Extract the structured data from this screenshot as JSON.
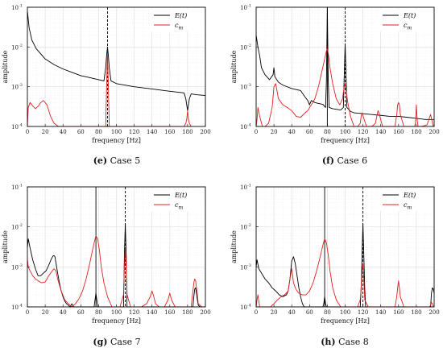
{
  "chart_data": [
    {
      "type": "line",
      "panel": "e",
      "caption_letter": "(e)",
      "caption_text": "Case 5",
      "xlabel": "frequency [Hz]",
      "ylabel": "amplitude",
      "xlim": [
        0,
        200
      ],
      "ylim": [
        0.0001,
        0.1
      ],
      "yscale": "log",
      "x_ticks": [
        0,
        20,
        40,
        60,
        80,
        100,
        120,
        140,
        160,
        180,
        200
      ],
      "y_ticks": [
        0.0001,
        0.001,
        0.01,
        0.1
      ],
      "y_tick_labels": [
        "10",
        "10",
        "10",
        "10"
      ],
      "y_tick_exponents": [
        "-4",
        "-3",
        "-2",
        "-1"
      ],
      "grid": true,
      "legend_position": "top-right",
      "vlines": [
        {
          "x": 90,
          "style": "dashed"
        }
      ],
      "series": [
        {
          "name": "E(t)",
          "color": "#000000",
          "x": [
            0,
            2,
            5,
            10,
            20,
            30,
            40,
            50,
            60,
            70,
            80,
            86,
            88,
            89,
            90,
            91,
            92,
            94,
            100,
            120,
            140,
            160,
            176,
            178,
            179,
            180,
            181,
            182,
            184,
            190,
            200
          ],
          "y": [
            0.08,
            0.03,
            0.015,
            0.009,
            0.005,
            0.0036,
            0.0028,
            0.0023,
            0.0019,
            0.0017,
            0.0015,
            0.0014,
            0.003,
            0.006,
            0.01,
            0.006,
            0.003,
            0.0014,
            0.0012,
            0.001,
            0.00088,
            0.00077,
            0.0007,
            0.0005,
            0.00035,
            0.00025,
            0.00035,
            0.0005,
            0.00066,
            0.00063,
            0.0006
          ]
        },
        {
          "name": "c_m",
          "color": "#e02020",
          "x": [
            0,
            1,
            3,
            6,
            9,
            12,
            15,
            18,
            22,
            26,
            30,
            35,
            40,
            88,
            89,
            90,
            91,
            92,
            176,
            178,
            179,
            180,
            181,
            182,
            184
          ],
          "y": [
            0.0001,
            0.0003,
            0.0004,
            0.00033,
            0.00028,
            0.00032,
            0.0004,
            0.00045,
            0.00035,
            0.00018,
            0.00012,
            0.0001,
            0.0001,
            0.0001,
            0.001,
            0.007,
            0.001,
            0.0001,
            0.0001,
            0.00012,
            0.00015,
            0.00025,
            0.00015,
            0.00012,
            0.0001
          ]
        }
      ]
    },
    {
      "type": "line",
      "panel": "f",
      "caption_letter": "(f)",
      "caption_text": "Case 6",
      "xlabel": "frequency [Hz]",
      "ylabel": "amplitude",
      "xlim": [
        0,
        200
      ],
      "ylim": [
        0.0001,
        0.1
      ],
      "yscale": "log",
      "x_ticks": [
        0,
        20,
        40,
        60,
        80,
        100,
        120,
        140,
        160,
        180,
        200
      ],
      "y_ticks": [
        0.0001,
        0.001,
        0.01,
        0.1
      ],
      "y_tick_labels": [
        "10",
        "10",
        "10",
        "10"
      ],
      "y_tick_exponents": [
        "-4",
        "-3",
        "-2",
        "-1"
      ],
      "grid": true,
      "legend_position": "top-right",
      "vlines": [
        {
          "x": 80,
          "style": "solid"
        },
        {
          "x": 100,
          "style": "dashed"
        }
      ],
      "series": [
        {
          "name": "E(t)",
          "color": "#000000",
          "x": [
            0,
            2,
            4,
            6,
            10,
            15,
            19,
            20,
            21,
            25,
            30,
            40,
            50,
            55,
            58,
            60,
            62,
            66,
            70,
            75,
            78,
            79,
            80,
            81,
            82,
            86,
            90,
            95,
            98,
            99,
            100,
            101,
            102,
            106,
            110,
            120,
            130,
            140,
            150,
            160,
            170,
            180,
            190,
            200
          ],
          "y": [
            0.02,
            0.01,
            0.006,
            0.003,
            0.002,
            0.0015,
            0.002,
            0.003,
            0.0018,
            0.0013,
            0.0011,
            0.0009,
            0.0008,
            0.00055,
            0.00045,
            0.00035,
            0.00045,
            0.0004,
            0.00038,
            0.00036,
            0.0003,
            0.0015,
            0.1,
            0.0015,
            0.0003,
            0.00028,
            0.00027,
            0.00026,
            0.0003,
            0.002,
            0.012,
            0.002,
            0.0003,
            0.00024,
            0.00022,
            0.00021,
            0.0002,
            0.00019,
            0.00018,
            0.00018,
            0.00017,
            0.00016,
            0.00015,
            0.00015
          ]
        },
        {
          "name": "c_m",
          "color": "#e02020",
          "x": [
            0,
            1,
            2,
            4,
            7,
            10,
            14,
            18,
            20,
            22,
            25,
            30,
            35,
            40,
            45,
            50,
            55,
            58,
            62,
            66,
            70,
            74,
            77,
            79,
            80,
            81,
            83,
            86,
            90,
            94,
            97,
            99,
            100,
            101,
            103,
            106,
            110,
            114,
            117,
            118,
            119,
            121,
            124,
            130,
            134,
            136,
            137,
            138,
            139,
            142,
            148,
            156,
            158,
            159,
            160,
            161,
            162,
            166,
            172,
            178,
            179,
            180,
            181,
            182,
            186,
            192,
            196,
            199,
            200
          ],
          "y": [
            0.0001,
            0.00015,
            0.0003,
            0.00018,
            0.0001,
            0.0001,
            0.00012,
            0.0003,
            0.001,
            0.0012,
            0.0005,
            0.00035,
            0.0003,
            0.00025,
            0.00018,
            0.00017,
            0.00022,
            0.00025,
            0.00035,
            0.0005,
            0.001,
            0.0025,
            0.005,
            0.008,
            0.009,
            0.007,
            0.003,
            0.0012,
            0.0005,
            0.00035,
            0.0005,
            0.001,
            0.0012,
            0.0008,
            0.0004,
            0.00018,
            0.0001,
            0.0001,
            0.00012,
            0.00018,
            0.00022,
            0.00016,
            0.0001,
            0.0001,
            0.00012,
            0.0002,
            0.00025,
            0.00022,
            0.00018,
            0.0001,
            0.0001,
            0.0001,
            0.0002,
            0.00035,
            0.0004,
            0.00035,
            0.0002,
            0.0001,
            0.0001,
            0.0001,
            0.00012,
            0.00035,
            0.00014,
            0.0001,
            0.0001,
            0.00011,
            0.0002,
            0.0001,
            0.0001
          ]
        }
      ]
    },
    {
      "type": "line",
      "panel": "g",
      "caption_letter": "(g)",
      "caption_text": "Case 7",
      "xlabel": "frequency [Hz]",
      "ylabel": "amplitude",
      "xlim": [
        0,
        200
      ],
      "ylim": [
        0.0001,
        0.1
      ],
      "yscale": "log",
      "x_ticks": [
        0,
        20,
        40,
        60,
        80,
        100,
        120,
        140,
        160,
        180,
        200
      ],
      "y_ticks": [
        0.0001,
        0.001,
        0.01,
        0.1
      ],
      "y_tick_labels": [
        "10",
        "10",
        "10",
        "10"
      ],
      "y_tick_exponents": [
        "-4",
        "-3",
        "-2",
        "-1"
      ],
      "grid": true,
      "legend_position": "top-right",
      "vlines": [
        {
          "x": 77,
          "style": "solid"
        },
        {
          "x": 110,
          "style": "dashed"
        }
      ],
      "series": [
        {
          "name": "E(t)",
          "color": "#000000",
          "x": [
            0,
            1,
            3,
            6,
            9,
            12,
            15,
            18,
            21,
            24,
            27,
            29,
            30,
            31,
            32,
            34,
            36,
            38,
            40,
            42,
            44,
            46,
            48,
            50,
            52,
            75,
            76,
            77,
            78,
            79,
            108,
            109,
            110,
            111,
            112,
            186,
            187,
            188,
            189,
            190,
            191,
            192,
            194
          ],
          "y": [
            0.003,
            0.005,
            0.003,
            0.0015,
            0.0009,
            0.0006,
            0.0006,
            0.0007,
            0.0008,
            0.0011,
            0.0016,
            0.0019,
            0.0019,
            0.0018,
            0.0013,
            0.0007,
            0.0004,
            0.00025,
            0.00018,
            0.00014,
            0.00012,
            0.00011,
            0.0001,
            0.00012,
            0.0001,
            0.0001,
            0.00015,
            0.00022,
            0.00015,
            0.0001,
            0.0001,
            0.002,
            0.012,
            0.002,
            0.0001,
            0.0001,
            0.00018,
            0.00028,
            0.0003,
            0.00022,
            0.00015,
            0.00011,
            0.0001
          ]
        },
        {
          "name": "c_m",
          "color": "#e02020",
          "x": [
            0,
            1,
            3,
            6,
            9,
            12,
            16,
            20,
            24,
            28,
            30,
            32,
            34,
            38,
            42,
            46,
            50,
            52,
            54,
            58,
            62,
            66,
            70,
            73,
            75,
            77,
            79,
            81,
            83,
            86,
            90,
            95,
            100,
            104,
            108,
            109,
            110,
            111,
            112,
            116,
            120,
            128,
            134,
            138,
            140,
            142,
            144,
            148,
            154,
            158,
            160,
            162,
            166,
            176,
            184,
            186,
            187,
            188,
            189,
            190,
            191,
            192,
            196,
            200
          ],
          "y": [
            0.0015,
            0.001,
            0.0008,
            0.0006,
            0.0005,
            0.00045,
            0.0004,
            0.00042,
            0.0006,
            0.0008,
            0.0009,
            0.0008,
            0.0005,
            0.00025,
            0.00015,
            0.00012,
            0.0001,
            0.00011,
            0.00012,
            0.00016,
            0.00025,
            0.0005,
            0.0012,
            0.0025,
            0.004,
            0.006,
            0.005,
            0.0025,
            0.001,
            0.0004,
            0.00018,
            0.0001,
            0.0001,
            0.0001,
            0.0002,
            0.001,
            0.003,
            0.001,
            0.0002,
            0.0001,
            0.0001,
            0.0001,
            0.00012,
            0.00018,
            0.00025,
            0.00018,
            0.00012,
            0.0001,
            0.0001,
            0.00015,
            0.00022,
            0.00015,
            0.0001,
            0.0001,
            0.0001,
            0.00025,
            0.0004,
            0.0005,
            0.00045,
            0.0003,
            0.0002,
            0.00012,
            0.0001,
            0.0001
          ]
        }
      ]
    },
    {
      "type": "line",
      "panel": "h",
      "caption_letter": "(h)",
      "caption_text": "Case 8",
      "xlabel": "frequency [Hz]",
      "ylabel": "amplitude",
      "xlim": [
        0,
        200
      ],
      "ylim": [
        0.0001,
        0.1
      ],
      "yscale": "log",
      "x_ticks": [
        0,
        20,
        40,
        60,
        80,
        100,
        120,
        140,
        160,
        180,
        200
      ],
      "y_ticks": [
        0.0001,
        0.001,
        0.01,
        0.1
      ],
      "y_tick_labels": [
        "10",
        "10",
        "10",
        "10"
      ],
      "y_tick_exponents": [
        "-4",
        "-3",
        "-2",
        "-1"
      ],
      "grid": true,
      "legend_position": "top-right",
      "vlines": [
        {
          "x": 77,
          "style": "solid"
        },
        {
          "x": 120,
          "style": "dashed"
        }
      ],
      "series": [
        {
          "name": "E(t)",
          "color": "#000000",
          "x": [
            0,
            1,
            3,
            6,
            10,
            14,
            18,
            22,
            26,
            30,
            34,
            36,
            38,
            40,
            42,
            44,
            46,
            48,
            50,
            52,
            54,
            75,
            76,
            77,
            78,
            79,
            117,
            118,
            119,
            120,
            121,
            122,
            123,
            196,
            197,
            198,
            199,
            200
          ],
          "y": [
            0.001,
            0.0015,
            0.0009,
            0.0007,
            0.0005,
            0.0004,
            0.0003,
            0.00025,
            0.0002,
            0.00018,
            0.0002,
            0.00025,
            0.0005,
            0.0014,
            0.0018,
            0.0012,
            0.0006,
            0.0003,
            0.00018,
            0.00012,
            0.0001,
            0.0001,
            0.00012,
            0.00018,
            0.00012,
            0.0001,
            0.0001,
            0.0003,
            0.002,
            0.012,
            0.002,
            0.0003,
            0.0001,
            0.0001,
            0.00022,
            0.0003,
            0.00028,
            0.00022
          ]
        },
        {
          "name": "c_m",
          "color": "#e02020",
          "x": [
            0,
            1,
            2,
            4,
            8,
            12,
            16,
            20,
            24,
            28,
            32,
            36,
            38,
            40,
            41,
            42,
            44,
            46,
            48,
            52,
            56,
            60,
            64,
            68,
            72,
            75,
            77,
            79,
            81,
            83,
            86,
            90,
            95,
            100,
            108,
            114,
            117,
            118,
            119,
            120,
            121,
            122,
            126,
            132,
            150,
            156,
            158,
            159,
            160,
            161,
            162,
            166,
            180,
            195,
            196,
            197,
            198,
            199,
            200
          ],
          "y": [
            0.0001,
            0.00015,
            0.0002,
            0.0001,
            0.0001,
            0.0001,
            0.0001,
            0.00012,
            0.00015,
            0.00018,
            0.0002,
            0.00025,
            0.0005,
            0.0009,
            0.0006,
            0.0004,
            0.0003,
            0.00025,
            0.00022,
            0.0002,
            0.0002,
            0.00025,
            0.0004,
            0.0008,
            0.0018,
            0.0035,
            0.005,
            0.004,
            0.002,
            0.0008,
            0.0003,
            0.00015,
            0.0001,
            0.0001,
            0.0001,
            0.0001,
            0.00015,
            0.0003,
            0.0008,
            0.0012,
            0.0005,
            0.00015,
            0.0001,
            0.0001,
            0.0001,
            0.0001,
            0.00018,
            0.0003,
            0.00045,
            0.0003,
            0.00018,
            0.0001,
            0.0001,
            0.0001,
            0.00011,
            0.00013,
            0.00012,
            0.0001,
            0.0001
          ]
        }
      ]
    }
  ]
}
